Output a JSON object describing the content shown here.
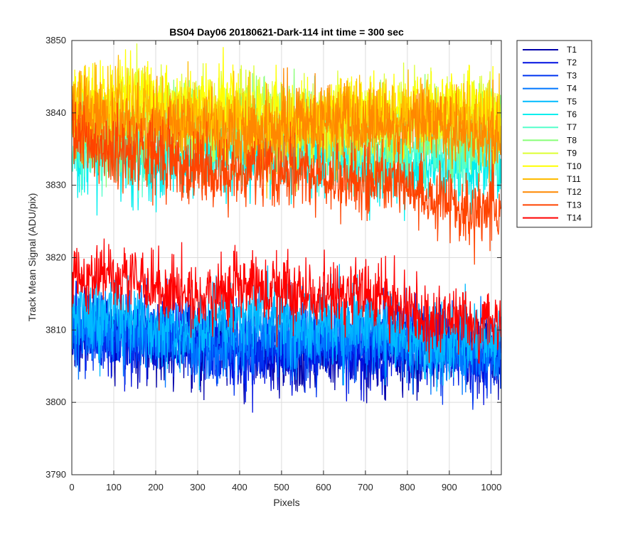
{
  "chart_data": {
    "type": "line",
    "title": "BS04 Day06 20180621-Dark-114 int time = 300 sec",
    "xlabel": "Pixels",
    "ylabel": "Track Mean Signal (ADU/pix)",
    "xlim": [
      0,
      1024
    ],
    "ylim": [
      3790,
      3850
    ],
    "xticks": [
      0,
      100,
      200,
      300,
      400,
      500,
      600,
      700,
      800,
      900,
      1000
    ],
    "yticks": [
      3790,
      3800,
      3810,
      3820,
      3830,
      3840,
      3850
    ],
    "grid": true,
    "legend_position": "outside-top-right",
    "n_points": 1024,
    "series": [
      {
        "name": "T1",
        "color": "#0000aa",
        "mean_start": 3808.5,
        "mean_end": 3806.0,
        "noise": 2.6
      },
      {
        "name": "T2",
        "color": "#0010e0",
        "mean_start": 3809.0,
        "mean_end": 3806.5,
        "noise": 2.6
      },
      {
        "name": "T3",
        "color": "#0035f0",
        "mean_start": 3809.5,
        "mean_end": 3807.0,
        "noise": 2.6
      },
      {
        "name": "T4",
        "color": "#0077ff",
        "mean_start": 3810.0,
        "mean_end": 3807.5,
        "noise": 2.6
      },
      {
        "name": "T5",
        "color": "#00bbff",
        "mean_start": 3812.5,
        "mean_end": 3809.0,
        "noise": 2.6
      },
      {
        "name": "T6",
        "color": "#00eeee",
        "mean_start": 3834.5,
        "mean_end": 3833.0,
        "noise": 2.6
      },
      {
        "name": "T7",
        "color": "#55ffcc",
        "mean_start": 3836.0,
        "mean_end": 3835.0,
        "noise": 2.6
      },
      {
        "name": "T8",
        "color": "#88ff77",
        "mean_start": 3839.5,
        "mean_end": 3837.5,
        "noise": 2.6
      },
      {
        "name": "T9",
        "color": "#ddff33",
        "mean_start": 3840.5,
        "mean_end": 3839.0,
        "noise": 2.6
      },
      {
        "name": "T10",
        "color": "#ffff00",
        "mean_start": 3841.0,
        "mean_end": 3839.5,
        "noise": 2.6
      },
      {
        "name": "T11",
        "color": "#ffbb00",
        "mean_start": 3839.5,
        "mean_end": 3838.5,
        "noise": 2.6
      },
      {
        "name": "T12",
        "color": "#ff8800",
        "mean_start": 3838.0,
        "mean_end": 3837.5,
        "noise": 2.6
      },
      {
        "name": "T13",
        "color": "#ff4400",
        "mean_start": 3836.0,
        "mean_end": 3827.0,
        "noise": 2.6
      },
      {
        "name": "T14",
        "color": "#ff0000",
        "mean_start": 3818.0,
        "mean_end": 3811.5,
        "noise": 2.3
      }
    ]
  }
}
